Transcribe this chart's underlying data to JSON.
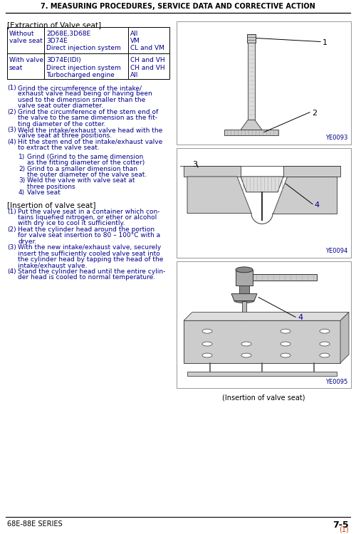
{
  "title": "7. MEASURING PROCEDURES, SERVICE DATA AND CORRECTIVE ACTION",
  "footer_left": "68E-88E SERIES",
  "footer_right": "7-5",
  "footer_right_sub": "(1)",
  "section1_header": "[Extraction of Valve seat]",
  "table_rows": [
    [
      "Without\nvalve seat",
      "2D68E,3D68E\n3D74E\nDirect injection system",
      "All\nVM\nCL and VM"
    ],
    [
      "With valve\nseat",
      "3D74E(IDI)\nDirect injection system\nTurbocharged engine",
      "CH and VH\nCH and VH\nAll"
    ]
  ],
  "steps1": [
    [
      "(1)",
      "Grind the circumference of the intake/\nexhaust valve head being or having been\nused to the dimension smaller than the\nvalve seat outer diameter."
    ],
    [
      "(2)",
      "Grind the circumference of the stem end of\nthe valve to the same dimension as the fit-\nting diameter of the cotter."
    ],
    [
      "(3)",
      "Weld the intake/exhaust valve head with the\nvalve seat at three positions."
    ],
    [
      "(4)",
      "Hit the stem end of the intake/exhaust valve\nto extract the valve seat."
    ]
  ],
  "substeps": [
    [
      "1)",
      "Grind (Grind to the same dimension\nas the fitting diameter of the cotter)"
    ],
    [
      "2)",
      "Grind to a smaller dimension than\nthe outer diameter of the valve seat."
    ],
    [
      "3)",
      "Weld the valve with valve seat at\nthree positions"
    ],
    [
      "4)",
      "Valve seat"
    ]
  ],
  "section2_header": "[Insertion of valve seat]",
  "steps2": [
    [
      "(1)",
      "Put the valve seat in a container which con-\ntains liquefied nitrogen, or ether or alcohol\nwith dry ice to cool it sufficiently."
    ],
    [
      "(2)",
      "Heat the cylinder head around the portion\nfor valve seat insertion to 80 – 100°C with a\ndryer."
    ],
    [
      "(3)",
      "With the new intake/exhaust valve, securely\ninsert the sufficiently cooled valve seat into\nthe cylinder head by tapping the head of the\nintake/exhaust valve."
    ],
    [
      "(4)",
      "Stand the cylinder head until the entire cylin-\nder head is cooled to normal temperature."
    ]
  ],
  "diagram1_caption": "YE0093",
  "diagram2_caption": "YE0094",
  "diagram3_caption": "YE0095",
  "insertion_caption": "(Insertion of valve seat)",
  "bg_color": "#ffffff",
  "navy": "#00008B",
  "black": "#000000",
  "orange": "#cc4400"
}
